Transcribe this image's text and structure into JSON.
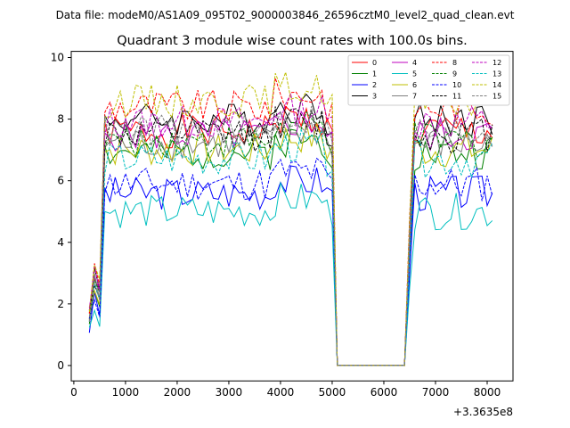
{
  "chart_data": {
    "type": "line",
    "suptitle": "Data file: modeM0/AS1A09_095T02_9000003846_26596cztM0_level2_quad_clean.evt",
    "title": "Quadrant 3 module wise count rates with 100.0s bins.",
    "xlabel": "",
    "ylabel": "",
    "offset_text": "+3.3635e8",
    "xlim": [
      -50,
      8500
    ],
    "ylim": [
      -0.5,
      10.2
    ],
    "xticks": [
      0,
      1000,
      2000,
      3000,
      4000,
      5000,
      6000,
      7000,
      8000
    ],
    "yticks": [
      0,
      2,
      4,
      6,
      8,
      10
    ],
    "legend_position": "upper right",
    "series": [
      {
        "name": "0",
        "color": "#ff0000",
        "dash": "solid",
        "base": 7.6,
        "seed": 1
      },
      {
        "name": "1",
        "color": "#008000",
        "dash": "solid",
        "base": 6.9,
        "seed": 2
      },
      {
        "name": "2",
        "color": "#0000ff",
        "dash": "solid",
        "base": 5.6,
        "seed": 3
      },
      {
        "name": "3",
        "color": "#000000",
        "dash": "solid",
        "base": 8.0,
        "seed": 4
      },
      {
        "name": "4",
        "color": "#bf00bf",
        "dash": "solid",
        "base": 7.5,
        "seed": 5
      },
      {
        "name": "5",
        "color": "#00bfbf",
        "dash": "solid",
        "base": 5.0,
        "seed": 6
      },
      {
        "name": "6",
        "color": "#bfbf00",
        "dash": "solid",
        "base": 7.0,
        "seed": 7
      },
      {
        "name": "7",
        "color": "#808080",
        "dash": "solid",
        "base": 7.2,
        "seed": 8
      },
      {
        "name": "8",
        "color": "#ff0000",
        "dash": "dashed",
        "base": 8.4,
        "seed": 9
      },
      {
        "name": "9",
        "color": "#008000",
        "dash": "dashed",
        "base": 7.3,
        "seed": 10
      },
      {
        "name": "10",
        "color": "#0000ff",
        "dash": "dashed",
        "base": 5.9,
        "seed": 11
      },
      {
        "name": "11",
        "color": "#000000",
        "dash": "dashed",
        "base": 7.5,
        "seed": 12
      },
      {
        "name": "12",
        "color": "#bf00bf",
        "dash": "dashed",
        "base": 7.9,
        "seed": 13
      },
      {
        "name": "13",
        "color": "#00bfbf",
        "dash": "dashed",
        "base": 6.7,
        "seed": 14
      },
      {
        "name": "14",
        "color": "#bfbf00",
        "dash": "dashed",
        "base": 8.6,
        "seed": 15
      },
      {
        "name": "15",
        "color": "#808080",
        "dash": "dashed",
        "base": 7.6,
        "seed": 16
      }
    ],
    "time_segments": {
      "start": 300,
      "ramp_end": 550,
      "drop_start": 5050,
      "drop_end": 5150,
      "gap_end": 6450,
      "rise_end": 6600,
      "stop": 8150,
      "bin": 100
    }
  }
}
